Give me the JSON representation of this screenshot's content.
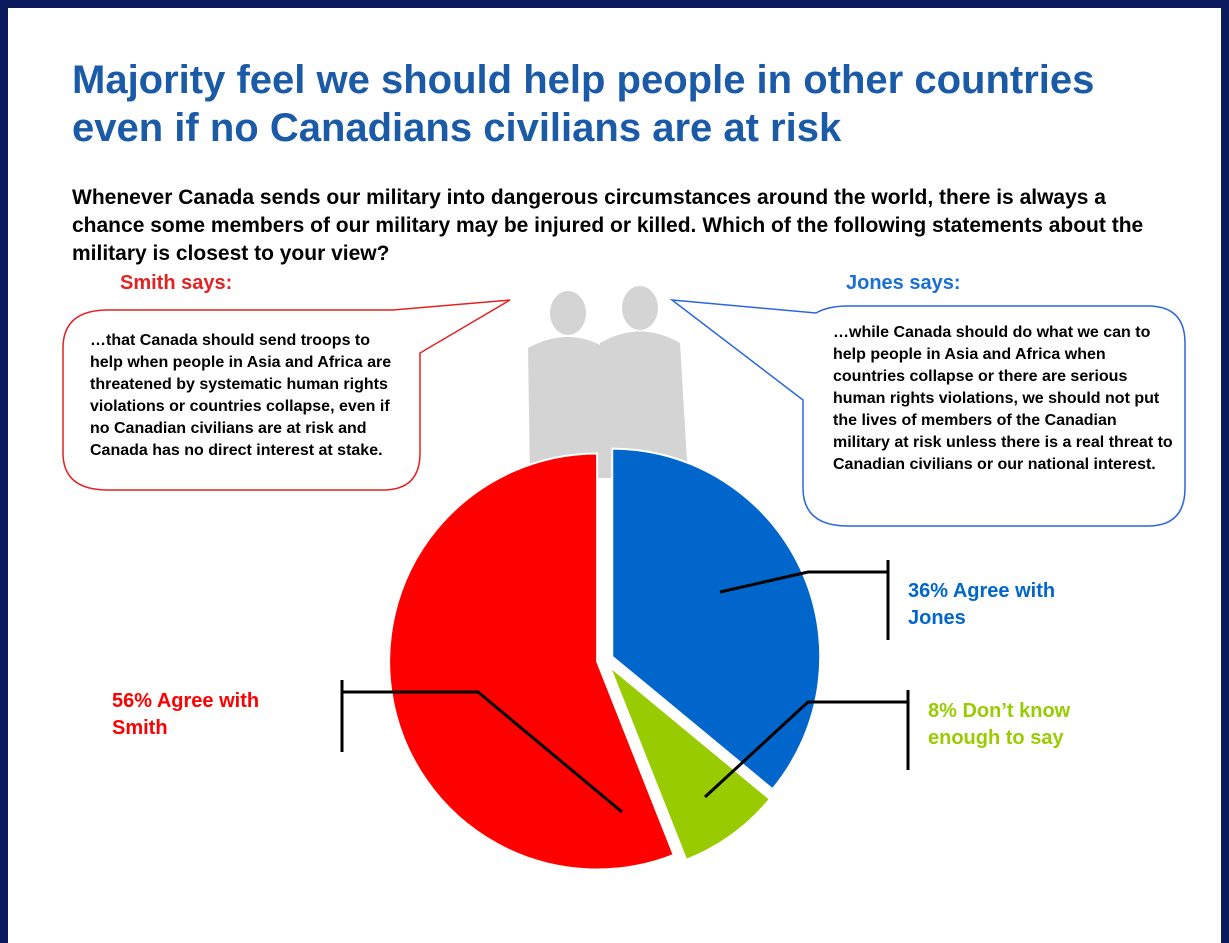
{
  "header": {
    "title": "Majority feel we should help people in other countries even if no Canadians civilians are at risk",
    "question": "Whenever Canada sends our military into dangerous circumstances around the world, there is always a chance some members of our military may be injured or killed. Which of the following statements about the military is closest to your view?"
  },
  "callouts": {
    "smith": {
      "heading": "Smith says:",
      "text": "…that Canada should send troops to help when people in Asia and Africa are threatened by systematic human rights violations or countries collapse, even if no Canadian civilians are at risk and Canada has no direct interest at stake."
    },
    "jones": {
      "heading": "Jones says:",
      "text": "…while Canada should do what we can to help people in Asia and Africa when countries collapse or there are serious human rights violations, we should not put the lives of members of the Canadian military at risk unless there is a real threat to Canadian civilians or our national interest."
    }
  },
  "chart_data": {
    "type": "pie",
    "values": [
      36,
      8,
      56
    ],
    "value_labels": [
      "36% Agree with Jones",
      "8% Don’t know enough to say",
      "56% Agree with Smith"
    ],
    "colors": [
      "#0066cc",
      "#99cc00",
      "#ff0000"
    ]
  }
}
